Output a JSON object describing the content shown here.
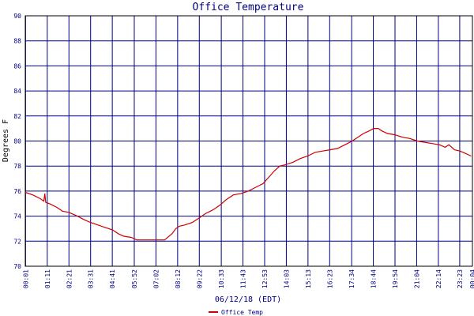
{
  "chart_data": {
    "type": "line",
    "title": "Office Temperature",
    "xlabel": "06/12/18 (EDT)",
    "ylabel": "Degrees F",
    "ylim": [
      70,
      90
    ],
    "yticks": [
      70,
      72,
      74,
      76,
      78,
      80,
      82,
      84,
      86,
      88,
      90
    ],
    "xtick_labels": [
      "00:01",
      "01:11",
      "02:21",
      "03:31",
      "04:41",
      "05:52",
      "07:02",
      "08:12",
      "09:22",
      "10:33",
      "11:43",
      "12:53",
      "14:03",
      "15:13",
      "16:23",
      "17:34",
      "18:44",
      "19:54",
      "21:04",
      "22:14",
      "23:23",
      "00:04"
    ],
    "xtick_hours": [
      0.0167,
      1.1833,
      2.35,
      3.5167,
      4.6833,
      5.8667,
      7.0333,
      8.2,
      9.3667,
      10.55,
      11.7167,
      12.8833,
      14.05,
      15.2167,
      16.3833,
      17.5667,
      18.7333,
      19.9,
      21.0667,
      22.2333,
      23.3833,
      24.0667
    ],
    "grid": true,
    "legend_position": "bottom",
    "colors": {
      "series": "#cc0000",
      "grid": "#000080",
      "frame": "#000000"
    },
    "series": [
      {
        "name": "Office Temp",
        "x_hours": [
          0,
          0.4,
          0.8,
          1.0,
          1.05,
          1.1,
          1.3,
          1.7,
          2.0,
          2.35,
          2.8,
          3.2,
          3.5,
          3.9,
          4.3,
          4.7,
          5.0,
          5.3,
          5.7,
          6.0,
          6.4,
          6.8,
          7.1,
          7.5,
          7.9,
          8.1,
          8.3,
          8.6,
          9.0,
          9.4,
          9.7,
          10.1,
          10.5,
          10.8,
          11.2,
          11.6,
          12.0,
          12.4,
          12.8,
          13.1,
          13.4,
          13.7,
          14.0,
          14.4,
          14.8,
          15.2,
          15.6,
          16.0,
          16.4,
          16.8,
          17.2,
          17.6,
          17.9,
          18.2,
          18.5,
          18.75,
          19.0,
          19.2,
          19.5,
          19.9,
          20.3,
          20.7,
          21.1,
          21.5,
          21.9,
          22.3,
          22.6,
          22.8,
          23.1,
          23.4,
          23.7,
          24.0
        ],
        "values": [
          75.9,
          75.7,
          75.4,
          75.2,
          75.8,
          75.1,
          75.0,
          74.7,
          74.4,
          74.3,
          74.0,
          73.7,
          73.5,
          73.3,
          73.1,
          72.9,
          72.6,
          72.4,
          72.3,
          72.1,
          72.1,
          72.1,
          72.1,
          72.1,
          72.6,
          73.0,
          73.2,
          73.3,
          73.5,
          73.9,
          74.2,
          74.5,
          74.9,
          75.3,
          75.7,
          75.8,
          76.0,
          76.3,
          76.6,
          77.1,
          77.6,
          78.0,
          78.1,
          78.3,
          78.6,
          78.8,
          79.1,
          79.2,
          79.3,
          79.4,
          79.7,
          80.0,
          80.3,
          80.6,
          80.8,
          81.0,
          81.0,
          80.8,
          80.6,
          80.5,
          80.3,
          80.2,
          80.0,
          79.9,
          79.8,
          79.7,
          79.5,
          79.7,
          79.3,
          79.2,
          79.0,
          78.8
        ]
      }
    ]
  }
}
